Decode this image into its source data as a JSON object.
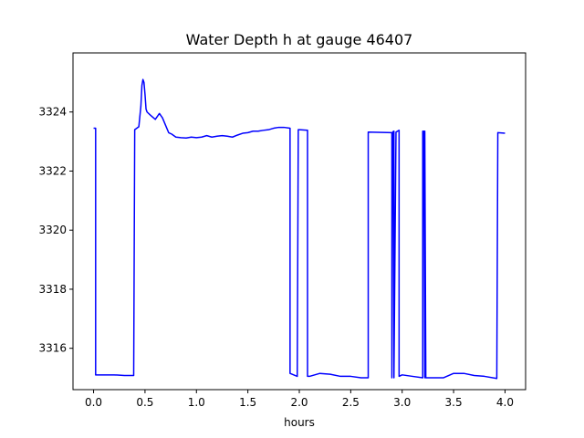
{
  "chart_data": {
    "type": "line",
    "title": "Water Depth h at gauge 46407",
    "xlabel": "hours",
    "ylabel": "",
    "xlim": [
      -0.2,
      4.2
    ],
    "ylim": [
      3314.6,
      3326.0
    ],
    "xticks": [
      0.0,
      0.5,
      1.0,
      1.5,
      2.0,
      2.5,
      3.0,
      3.5,
      4.0
    ],
    "xtick_labels": [
      "0.0",
      "0.5",
      "1.0",
      "1.5",
      "2.0",
      "2.5",
      "3.0",
      "3.5",
      "4.0"
    ],
    "yticks": [
      3316,
      3318,
      3320,
      3322,
      3324
    ],
    "ytick_labels": [
      "3316",
      "3318",
      "3320",
      "3322",
      "3324"
    ],
    "grid": false,
    "color": "#0000ff",
    "series": [
      {
        "name": "",
        "x": [
          0.0,
          0.02,
          0.02,
          0.1,
          0.2,
          0.3,
          0.39,
          0.4,
          0.44,
          0.46,
          0.47,
          0.48,
          0.49,
          0.5,
          0.51,
          0.52,
          0.55,
          0.6,
          0.64,
          0.67,
          0.7,
          0.73,
          0.76,
          0.8,
          0.85,
          0.9,
          0.95,
          1.0,
          1.05,
          1.1,
          1.15,
          1.2,
          1.25,
          1.3,
          1.35,
          1.4,
          1.45,
          1.5,
          1.55,
          1.6,
          1.65,
          1.7,
          1.75,
          1.8,
          1.85,
          1.91,
          1.91,
          1.98,
          1.99,
          2.0,
          2.08,
          2.08,
          2.1,
          2.2,
          2.3,
          2.4,
          2.5,
          2.6,
          2.67,
          2.67,
          2.9,
          2.9,
          2.91,
          2.92,
          2.92,
          2.94,
          2.97,
          2.97,
          3.0,
          3.1,
          3.2,
          3.2,
          3.21,
          3.22,
          3.22,
          3.23,
          3.3,
          3.4,
          3.5,
          3.6,
          3.7,
          3.8,
          3.92,
          3.93,
          4.0
        ],
        "y": [
          3323.45,
          3323.45,
          3315.1,
          3315.1,
          3315.1,
          3315.08,
          3315.08,
          3323.4,
          3323.5,
          3324.2,
          3324.9,
          3325.1,
          3325.0,
          3324.6,
          3324.1,
          3324.0,
          3323.9,
          3323.75,
          3323.95,
          3323.8,
          3323.55,
          3323.3,
          3323.25,
          3323.15,
          3323.13,
          3323.12,
          3323.15,
          3323.13,
          3323.15,
          3323.2,
          3323.15,
          3323.18,
          3323.2,
          3323.18,
          3323.15,
          3323.22,
          3323.28,
          3323.3,
          3323.35,
          3323.35,
          3323.38,
          3323.4,
          3323.45,
          3323.48,
          3323.48,
          3323.45,
          3315.15,
          3315.05,
          3323.4,
          3323.4,
          3323.38,
          3315.05,
          3315.05,
          3315.15,
          3315.12,
          3315.05,
          3315.05,
          3315.0,
          3315.0,
          3323.32,
          3323.3,
          3315.0,
          3323.33,
          3323.35,
          3315.0,
          3323.32,
          3323.38,
          3315.05,
          3315.1,
          3315.05,
          3315.0,
          3323.35,
          3323.35,
          3315.0,
          3323.35,
          3315.0,
          3315.0,
          3315.0,
          3315.15,
          3315.15,
          3315.08,
          3315.05,
          3314.98,
          3323.3,
          3323.28
        ]
      }
    ]
  }
}
